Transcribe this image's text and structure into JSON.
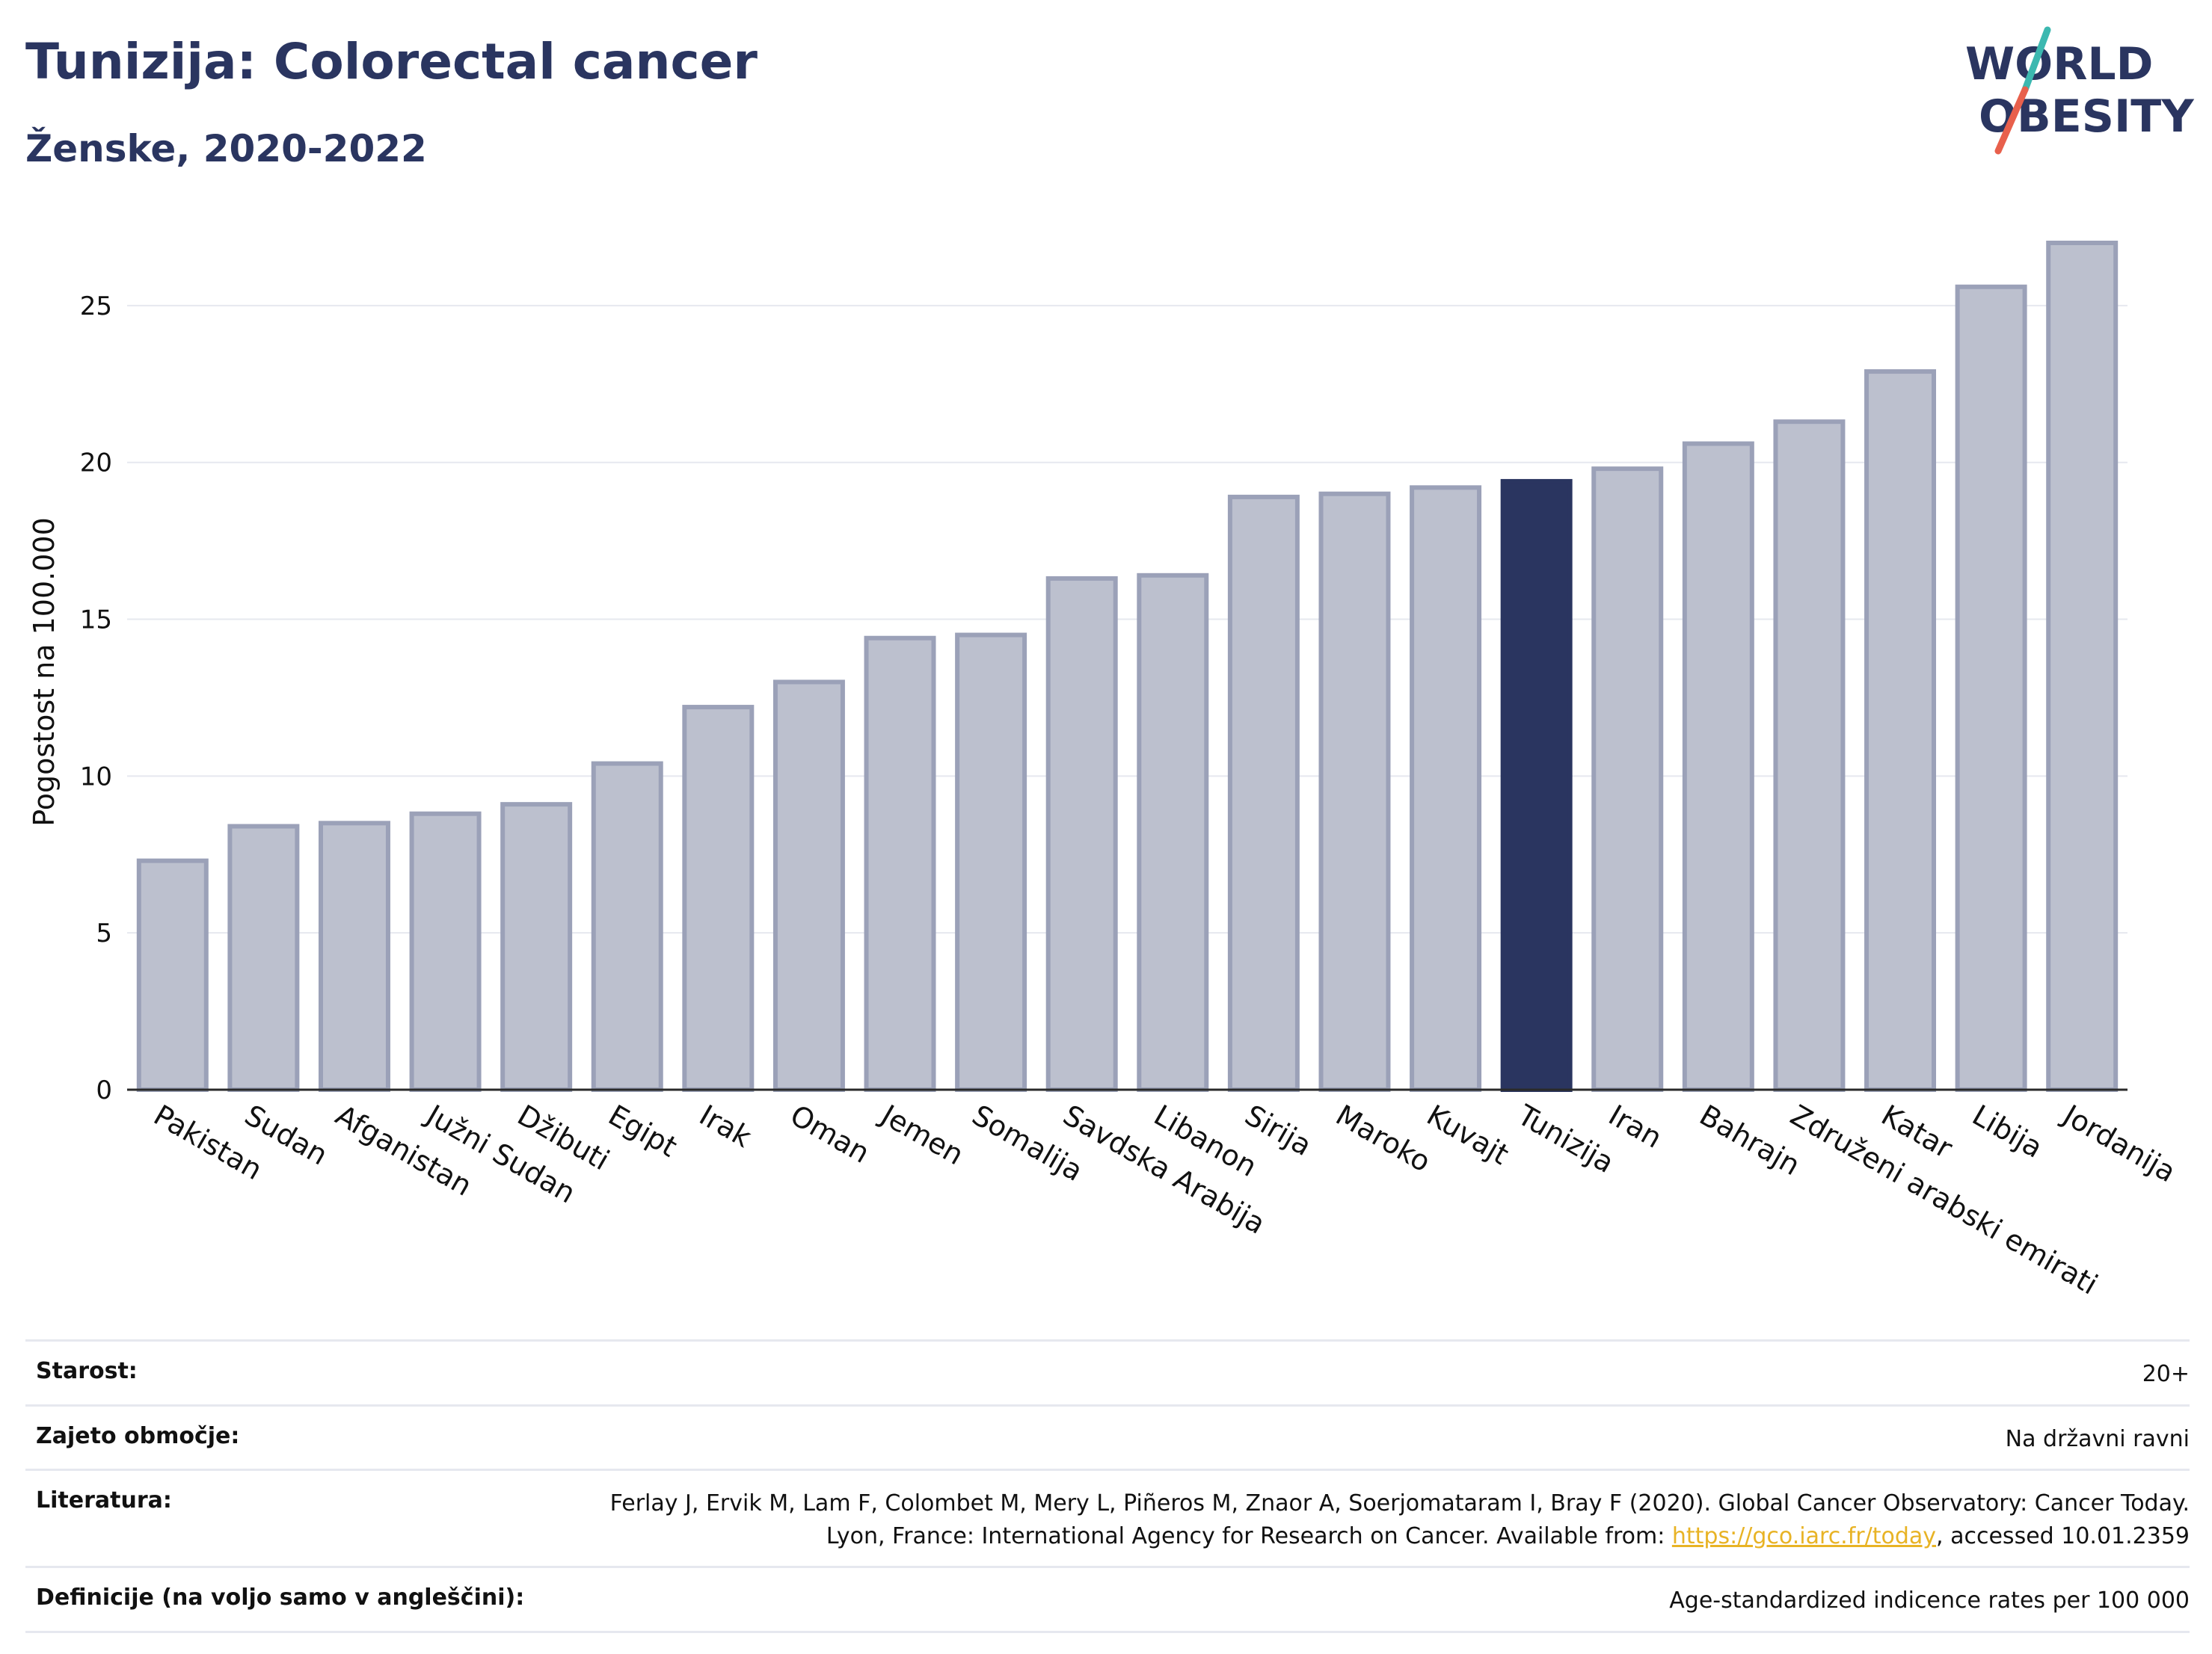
{
  "header": {
    "title": "Tunizija: Colorectal cancer",
    "subtitle": "Ženske, 2020-2022"
  },
  "logo": {
    "line1": "WORLD",
    "line2": "OBESITY",
    "brand_color": "#2a3560",
    "accent_teal": "#3cb8b0",
    "accent_red": "#e8604c"
  },
  "chart_data": {
    "type": "bar",
    "ylabel": "Pogostost na 100.000",
    "ylim": [
      0,
      27.5
    ],
    "yticks": [
      0,
      5,
      10,
      15,
      20,
      25
    ],
    "grid": true,
    "highlight": "Tunizija",
    "bar_color": "#bcc0ce",
    "bar_border_color": "#9ba1b8",
    "highlight_color": "#2a3560",
    "categories": [
      "Pakistan",
      "Sudan",
      "Afganistan",
      "Južni Sudan",
      "Džibuti",
      "Egipt",
      "Irak",
      "Oman",
      "Jemen",
      "Somalija",
      "Savdska Arabija",
      "Libanon",
      "Sirija",
      "Maroko",
      "Kuvajt",
      "Tunizija",
      "Iran",
      "Bahrajn",
      "Združeni arabski emirati",
      "Katar",
      "Libija",
      "Jordanija"
    ],
    "values": [
      7.3,
      8.4,
      8.5,
      8.8,
      9.1,
      10.4,
      12.2,
      13.0,
      14.4,
      14.5,
      16.3,
      16.4,
      18.9,
      19.0,
      19.2,
      19.4,
      19.8,
      20.6,
      21.3,
      22.9,
      25.6,
      27.0
    ]
  },
  "meta": {
    "age_label": "Starost:",
    "age_value": "20+",
    "coverage_label": "Zajeto območje:",
    "coverage_value": "Na državni ravni",
    "ref_label": "Literatura:",
    "ref_text_1": "Ferlay J, Ervik M, Lam F, Colombet M, Mery L, Piñeros M, Znaor A, Soerjomataram I, Bray F (2020). Global Cancer Observatory: Cancer Today. Lyon, France: International Agency for Research on Cancer. Available from: ",
    "ref_link": "https://gco.iarc.fr/today",
    "ref_text_2": ", accessed 10.01.2359",
    "def_label": "Definicije (na voljo samo v angleščini):",
    "def_value": "Age-standardized indicence rates per 100 000"
  }
}
